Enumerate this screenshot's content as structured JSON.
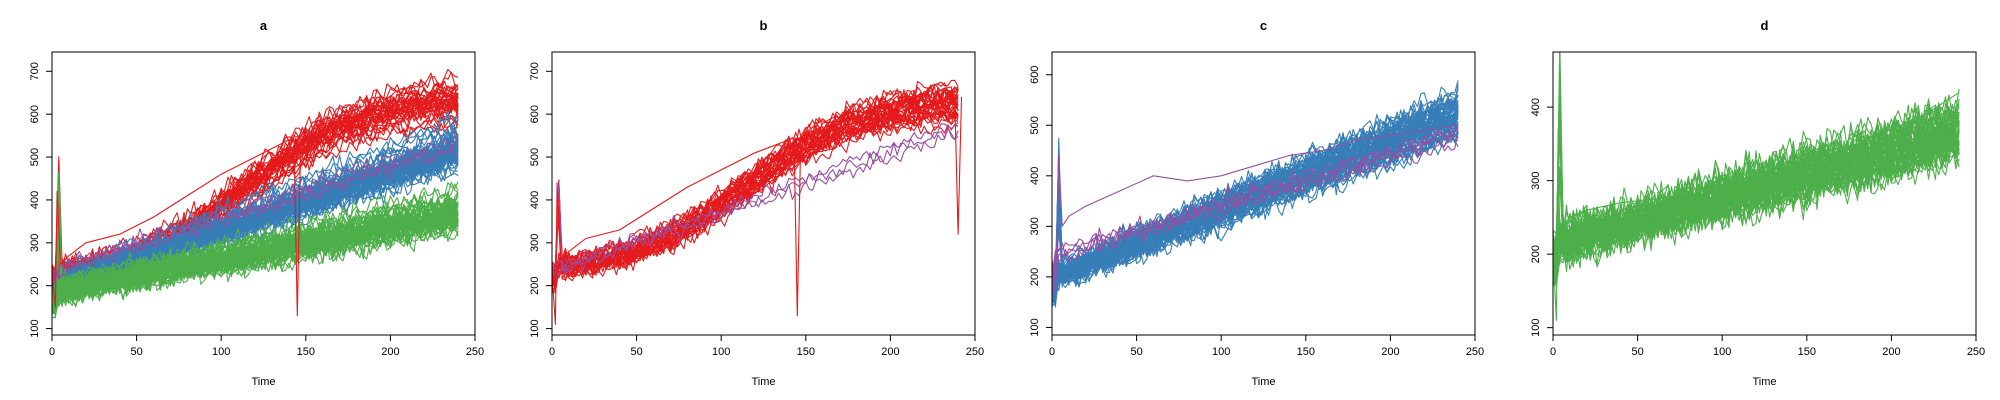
{
  "chart_data": [
    {
      "type": "line",
      "title": "a",
      "xlabel": "Time",
      "ylabel": "",
      "xlim": [
        0,
        250
      ],
      "ylim": [
        85,
        745
      ],
      "xticks": [
        0,
        50,
        100,
        150,
        200,
        250
      ],
      "yticks": [
        100,
        200,
        300,
        400,
        500,
        600,
        700
      ],
      "groups": [
        {
          "color": "#E41A1C",
          "count": 34,
          "start": 230,
          "mid": 420,
          "end": 625,
          "spread": 60,
          "noise": 22,
          "shape": "sigmoid"
        },
        {
          "color": "#377EB8",
          "count": 60,
          "start": 195,
          "mid": 330,
          "end": 520,
          "spread": 55,
          "noise": 25,
          "shape": "linear"
        },
        {
          "color": "#4DAF4A",
          "count": 55,
          "start": 185,
          "mid": 270,
          "end": 370,
          "spread": 45,
          "noise": 28,
          "shape": "linear"
        },
        {
          "color": "#984EA3",
          "count": 3,
          "start": 230,
          "mid": 380,
          "end": 520,
          "spread": 40,
          "noise": 20,
          "shape": "linear"
        }
      ],
      "series": [
        {
          "name": "",
          "color": "#E41A1C",
          "x": [
            0,
            2,
            3,
            5,
            10,
            20,
            40,
            60,
            80,
            100,
            120,
            140,
            143,
            145,
            147,
            160,
            180,
            200,
            220,
            240
          ],
          "y": [
            230,
            150,
            420,
            250,
            270,
            300,
            320,
            360,
            410,
            460,
            500,
            540,
            540,
            130,
            540,
            560,
            590,
            610,
            625,
            640
          ]
        }
      ]
    },
    {
      "type": "line",
      "title": "b",
      "xlabel": "Time",
      "ylabel": "",
      "xlim": [
        0,
        250
      ],
      "ylim": [
        85,
        745
      ],
      "xticks": [
        0,
        50,
        100,
        150,
        200,
        250
      ],
      "yticks": [
        100,
        200,
        300,
        400,
        500,
        600,
        700
      ],
      "groups": [
        {
          "color": "#E41A1C",
          "count": 34,
          "start": 240,
          "mid": 430,
          "end": 620,
          "spread": 55,
          "noise": 22,
          "shape": "sigmoid"
        },
        {
          "color": "#984EA3",
          "count": 3,
          "start": 230,
          "mid": 400,
          "end": 560,
          "spread": 30,
          "noise": 18,
          "shape": "linear"
        }
      ],
      "series": [
        {
          "name": "",
          "color": "#E41A1C",
          "x": [
            0,
            2,
            3,
            5,
            10,
            20,
            40,
            60,
            80,
            100,
            120,
            140,
            143,
            145,
            147,
            160,
            180,
            200,
            220,
            238,
            240,
            242
          ],
          "y": [
            230,
            110,
            440,
            260,
            280,
            310,
            330,
            380,
            430,
            470,
            510,
            540,
            545,
            130,
            540,
            560,
            580,
            600,
            620,
            640,
            320,
            640
          ]
        }
      ]
    },
    {
      "type": "line",
      "title": "c",
      "xlabel": "Time",
      "ylabel": "",
      "xlim": [
        0,
        250
      ],
      "ylim": [
        85,
        645
      ],
      "xticks": [
        0,
        50,
        100,
        150,
        200,
        250
      ],
      "yticks": [
        100,
        200,
        300,
        400,
        500,
        600
      ],
      "groups": [
        {
          "color": "#377EB8",
          "count": 60,
          "start": 200,
          "mid": 360,
          "end": 525,
          "spread": 50,
          "noise": 22,
          "shape": "linear"
        },
        {
          "color": "#984EA3",
          "count": 4,
          "start": 240,
          "mid": 380,
          "end": 480,
          "spread": 35,
          "noise": 20,
          "shape": "linear"
        }
      ],
      "series": [
        {
          "name": "",
          "color": "#984EA3",
          "x": [
            0,
            2,
            4,
            6,
            10,
            20,
            40,
            60,
            80,
            100,
            120,
            140,
            160,
            180,
            200,
            220,
            240
          ],
          "y": [
            230,
            160,
            440,
            300,
            320,
            340,
            370,
            400,
            390,
            400,
            420,
            440,
            450,
            470,
            480,
            490,
            500
          ]
        }
      ]
    },
    {
      "type": "line",
      "title": "d",
      "xlabel": "Time",
      "ylabel": "",
      "xlim": [
        0,
        250
      ],
      "ylim": [
        90,
        475
      ],
      "xticks": [
        0,
        50,
        100,
        150,
        200,
        250
      ],
      "yticks": [
        100,
        200,
        300,
        400
      ],
      "groups": [
        {
          "color": "#4DAF4A",
          "count": 55,
          "start": 215,
          "mid": 275,
          "end": 370,
          "spread": 40,
          "noise": 28,
          "shape": "linear"
        }
      ],
      "series": [
        {
          "name": "",
          "color": "#4DAF4A",
          "x": [
            0,
            2,
            3,
            4,
            6,
            10,
            20,
            40,
            60,
            80,
            100,
            120,
            140,
            160,
            180,
            200,
            220,
            240
          ],
          "y": [
            200,
            110,
            370,
            220,
            240,
            250,
            260,
            270,
            275,
            280,
            285,
            300,
            320,
            340,
            350,
            370,
            390,
            420
          ]
        }
      ]
    }
  ]
}
